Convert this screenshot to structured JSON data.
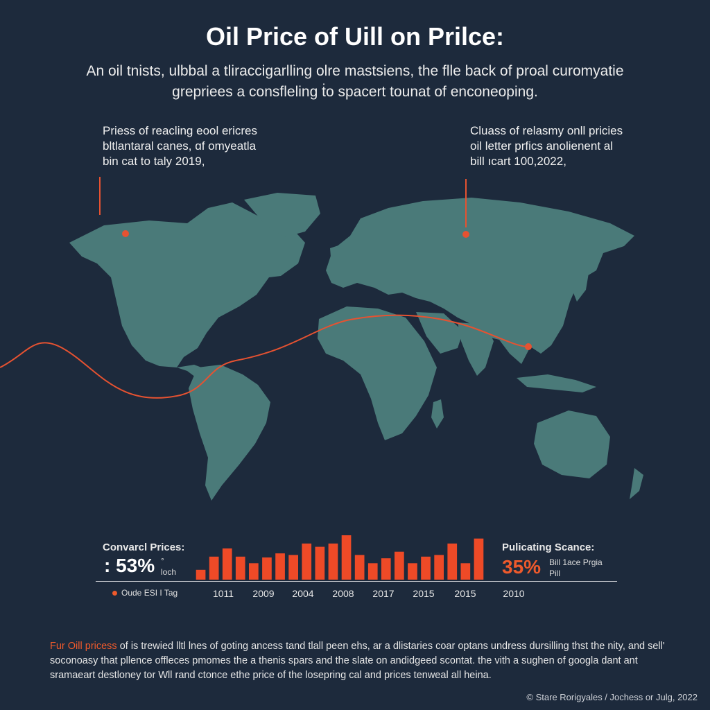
{
  "title": "Oil Price of Uill on Prilce:",
  "subtitle": "An oil tnists, ulbbal a tliraccigarlling olre mastsiens, the flle back of proal curomyatie grepriees a consfleling ṫo spacert tounat of enconeoping.",
  "annotations": {
    "left": [
      "Priess of reacling eool ericres",
      "bltlantaral canes, ɑf omyeatla",
      "bin cat to taly 2019,"
    ],
    "right": [
      "Cluass of relasmy onll pricies",
      "oil letter prfics anolienent al",
      "bill ıcart 100,2022,"
    ]
  },
  "map": {
    "land_color": "#4a7a79",
    "route_color": "#e65231",
    "markers": [
      "north-america-marker",
      "russia-marker",
      "asia-marker"
    ]
  },
  "stats": {
    "left_label": "Convarcl Prices:",
    "left_value": ": 53%",
    "left_sub": [
      "°",
      "loch"
    ],
    "right_label": "Pulicating Scance:",
    "right_value": "35%",
    "right_sub": [
      "Bill 1ace Prgia",
      "Pill"
    ]
  },
  "legend": {
    "label": "Oude ESI I Tag"
  },
  "chart_data": {
    "type": "bar",
    "values": [
      12,
      28,
      38,
      28,
      20,
      27,
      32,
      30,
      44,
      40,
      44,
      54,
      30,
      20,
      26,
      34,
      20,
      28,
      30,
      44,
      20,
      50
    ],
    "tick_labels": [
      "1011",
      "2009",
      "2004",
      "2008",
      "2017",
      "2015",
      "2015",
      "2010"
    ],
    "bar_color": "#ee4a27"
  },
  "body": {
    "highlight": "Fur Oill pricess",
    "text": " of is trewied lltl lnes of goting ancess tand tlall peen ehs, ar a dlistaries coar optans undress dursilling thst the nity, and sell' soconoasy that pllence offleces pmomes the a thenis spars and the slate on andidgeed scontat. the vith a sughen of googla dant ant sramaeart destloney tor Wll rand ctonce ethe price of the losepring cal and prices tenweal all heina."
  },
  "credit": "© Stare Rorigyales / Jochess or Julg, 2022"
}
